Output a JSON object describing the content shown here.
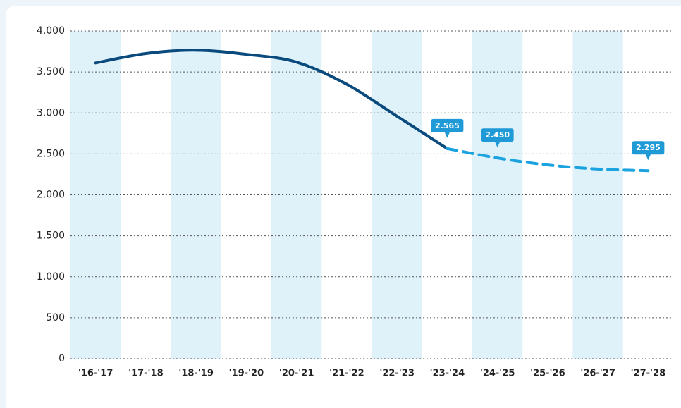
{
  "chart_data": {
    "type": "line",
    "categories": [
      "'16-'17",
      "'17-'18",
      "'18-'19",
      "'19-'20",
      "'20-'21",
      "'21-'22",
      "'22-'23",
      "'23-'24",
      "'24-'25",
      "'25-'26",
      "'26-'27",
      "'27-'28"
    ],
    "series": [
      {
        "color": "#0a4a7d",
        "style": "solid",
        "values": [
          3610,
          3725,
          3765,
          3715,
          3620,
          3350,
          2960,
          2565,
          null,
          null,
          null,
          null
        ],
        "value_labels": [
          null,
          null,
          null,
          null,
          null,
          null,
          null,
          "2.565",
          null,
          null,
          null,
          null
        ]
      },
      {
        "color": "#1ba3e0",
        "style": "dashed",
        "values": [
          null,
          null,
          null,
          null,
          null,
          null,
          null,
          2565,
          2450,
          2365,
          2315,
          2295
        ],
        "value_labels": [
          null,
          null,
          null,
          null,
          null,
          null,
          null,
          null,
          "2.450",
          null,
          null,
          "2.295"
        ]
      }
    ],
    "ylim": [
      0,
      4000
    ],
    "yticks": [
      0,
      500,
      {
        "value": 1000,
        "label": "1.000"
      },
      {
        "value": 1500,
        "label": "1.500"
      },
      {
        "value": 2000,
        "label": "2.000"
      },
      {
        "value": 2500,
        "label": "2.500"
      },
      {
        "value": 3000,
        "label": "3.000"
      },
      {
        "value": 3500,
        "label": "3.500"
      },
      {
        "value": 4000,
        "label": "4.000"
      }
    ],
    "grid": true,
    "band_color": "#dff2fa",
    "label_color": "#1f9ad6"
  }
}
